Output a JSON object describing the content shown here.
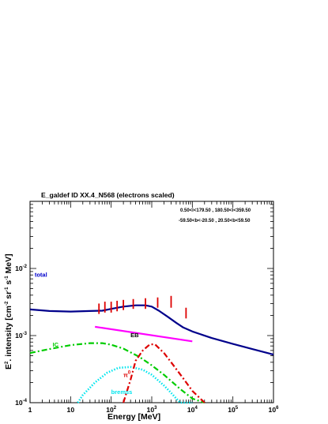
{
  "chart_data": {
    "type": "line",
    "title": "E_galdef ID XX.4_N568 (electrons scaled)",
    "region_lines": [
      "0.50<l<179.50 , 180.50<l<359.50",
      "-59.50<b<-20.50 , 20.50<b<59.50"
    ],
    "xlabel": "Energy [MeV]",
    "ylabel": {
      "text": "E",
      "sup1": "2",
      "text2": ". intensity [cm",
      "sup2": "-2",
      "text3": " sr",
      "sup3": "-1",
      "text4": " s",
      "sup4": "-1",
      "text5": " MeV]"
    },
    "x_scale": "log",
    "y_scale": "log",
    "xlim": [
      1,
      1000000
    ],
    "ylim": [
      0.0001,
      0.1
    ],
    "x_ticks": [
      {
        "base": "1",
        "exp": ""
      },
      {
        "base": "10",
        "exp": ""
      },
      {
        "base": "10",
        "exp": "2"
      },
      {
        "base": "10",
        "exp": "3"
      },
      {
        "base": "10",
        "exp": "4"
      },
      {
        "base": "10",
        "exp": "5"
      },
      {
        "base": "10",
        "exp": "6"
      }
    ],
    "y_ticks": [
      {
        "base": "10",
        "exp": "-4"
      },
      {
        "base": "10",
        "exp": "-3"
      },
      {
        "base": "10",
        "exp": "-2"
      }
    ],
    "grid": false,
    "series": [
      {
        "name": "total",
        "color": "#00008b",
        "style": "solid",
        "x": [
          1,
          3,
          10,
          30,
          60,
          100,
          200,
          400,
          700,
          1000,
          1500,
          2500,
          4000,
          6000,
          10000,
          30000,
          100000,
          300000,
          1000000
        ],
        "y": [
          0.00245,
          0.00232,
          0.00228,
          0.00232,
          0.00235,
          0.0025,
          0.0027,
          0.00282,
          0.00282,
          0.0027,
          0.00235,
          0.0019,
          0.00155,
          0.00132,
          0.00115,
          0.00092,
          0.00075,
          0.00063,
          0.00052
        ]
      },
      {
        "name": "IC",
        "color": "#00cc00",
        "style": "dash-dot",
        "x": [
          1,
          3,
          10,
          30,
          60,
          100,
          200,
          500,
          1000,
          2000,
          5000,
          10000,
          20000
        ],
        "y": [
          0.00055,
          0.00063,
          0.00072,
          0.00077,
          0.00077,
          0.00073,
          0.00064,
          0.00048,
          0.00036,
          0.00026,
          0.00016,
          0.000115,
          0.0001
        ]
      },
      {
        "name": "EB",
        "color": "#ff00ff",
        "style": "solid",
        "x": [
          40,
          10000
        ],
        "y": [
          0.00135,
          0.00082
        ]
      },
      {
        "name": "π⁰",
        "color": "#dd0000",
        "style": "dash-dot",
        "x": [
          200,
          300,
          400,
          600,
          900,
          1200,
          2000,
          3000,
          6000,
          10000,
          20000
        ],
        "y": [
          8e-05,
          0.00022,
          0.00042,
          0.0006,
          0.00074,
          0.00074,
          0.00055,
          0.0004,
          0.00023,
          0.00015,
          9.5e-05
        ]
      },
      {
        "name": "bremss",
        "color": "#00e5ee",
        "style": "dotted",
        "x": [
          15,
          20,
          40,
          80,
          150,
          300,
          600,
          1000,
          2000,
          3000,
          5000,
          10000
        ],
        "y": [
          0.0001,
          0.00013,
          0.0002,
          0.00028,
          0.00033,
          0.00034,
          0.00031,
          0.00026,
          0.00018,
          0.00014,
          0.0001,
          6e-05
        ]
      }
    ],
    "data_points": {
      "name": "",
      "color": "#dd0000",
      "points": [
        {
          "x": 50,
          "y_low": 0.0021,
          "y_high": 0.003
        },
        {
          "x": 70,
          "y_low": 0.0022,
          "y_high": 0.0032
        },
        {
          "x": 100,
          "y_low": 0.0022,
          "y_high": 0.0032
        },
        {
          "x": 140,
          "y_low": 0.0023,
          "y_high": 0.0033
        },
        {
          "x": 200,
          "y_low": 0.0024,
          "y_high": 0.0034
        },
        {
          "x": 350,
          "y_low": 0.0025,
          "y_high": 0.0035
        },
        {
          "x": 700,
          "y_low": 0.0025,
          "y_high": 0.0036
        },
        {
          "x": 1400,
          "y_low": 0.0026,
          "y_high": 0.0037
        },
        {
          "x": 3000,
          "y_low": 0.0026,
          "y_high": 0.0039
        },
        {
          "x": 7000,
          "y_low": 0.0018,
          "y_high": 0.0026
        }
      ]
    },
    "series_labels": [
      {
        "text": "total",
        "color": "#0000cc",
        "x": 1.3,
        "y": 0.0075
      },
      {
        "text": "EB",
        "color": "#000000",
        "x": 300,
        "y": 0.00095
      },
      {
        "text": "IC",
        "color": "#00cc00",
        "x": 3.6,
        "y": 0.00068
      },
      {
        "text": "π",
        "sup": "0",
        "color": "#dd0000",
        "x": 200,
        "y": 0.00024
      },
      {
        "text": "bremss",
        "color": "#00e5ee",
        "x": 100,
        "y": 0.000135
      }
    ]
  }
}
